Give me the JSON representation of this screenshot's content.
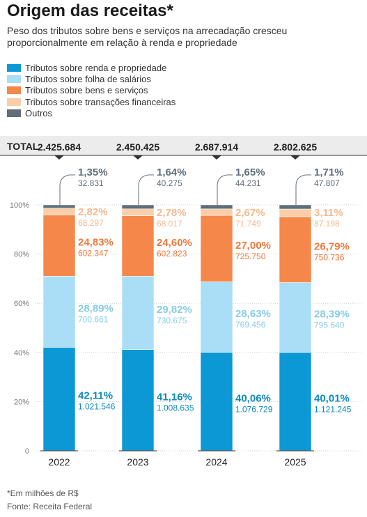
{
  "title": "Origem das receitas*",
  "subtitle": "Peso dos tributos sobre bens e serviços na arrecadação cresceu proporcionalmente em relação à renda e propriedade",
  "footnote": "*Em milhões de R$",
  "source": "Fonte: Receita Federal",
  "colors": {
    "renda": "#0b98d4",
    "folha": "#a9def6",
    "bens": "#f5874a",
    "transacoes": "#fbcda8",
    "outros": "#5f6e78"
  },
  "chart_data": {
    "type": "bar",
    "stacked": true,
    "categories": [
      "2022",
      "2023",
      "2024",
      "2025"
    ],
    "total_label": "TOTAL",
    "totals": [
      "2.425.684",
      "2.450.425",
      "2.687.914",
      "2.802.625"
    ],
    "ylim": [
      0,
      100
    ],
    "yticks": [
      "0",
      "20%",
      "40%",
      "60%",
      "80%",
      "100%"
    ],
    "series": [
      {
        "key": "renda",
        "name": "Tributos sobre renda e propriedade",
        "values": [
          42.11,
          41.16,
          40.06,
          40.01
        ],
        "pct_labels": [
          "42,11%",
          "41,16%",
          "40,06%",
          "40,01%"
        ],
        "amounts": [
          "1.021.546",
          "1.008.635",
          "1.076.729",
          "1.121.245"
        ]
      },
      {
        "key": "folha",
        "name": "Tributos sobre folha de salários",
        "values": [
          28.89,
          29.82,
          28.63,
          28.39
        ],
        "pct_labels": [
          "28,89%",
          "29,82%",
          "28,63%",
          "28,39%"
        ],
        "amounts": [
          "700.661",
          "730.675",
          "769.456",
          "795.640"
        ]
      },
      {
        "key": "bens",
        "name": "Tributos sobre bens e serviços",
        "values": [
          24.83,
          24.6,
          27.0,
          26.79
        ],
        "pct_labels": [
          "24,83%",
          "24,60%",
          "27,00%",
          "26,79%"
        ],
        "amounts": [
          "602.347",
          "602.823",
          "725.750",
          "750.736"
        ]
      },
      {
        "key": "transacoes",
        "name": "Tributos sobre transações financeiras",
        "values": [
          2.82,
          2.78,
          2.67,
          3.11
        ],
        "pct_labels": [
          "2,82%",
          "2,78%",
          "2,67%",
          "3,11%"
        ],
        "amounts": [
          "68.297",
          "68.017",
          "71.749",
          "87.198"
        ]
      },
      {
        "key": "outros",
        "name": "Outros",
        "values": [
          1.35,
          1.64,
          1.65,
          1.71
        ],
        "pct_labels": [
          "1,35%",
          "1,64%",
          "1,65%",
          "1,71%"
        ],
        "amounts": [
          "32.831",
          "40.275",
          "44.231",
          "47.807"
        ]
      }
    ]
  }
}
